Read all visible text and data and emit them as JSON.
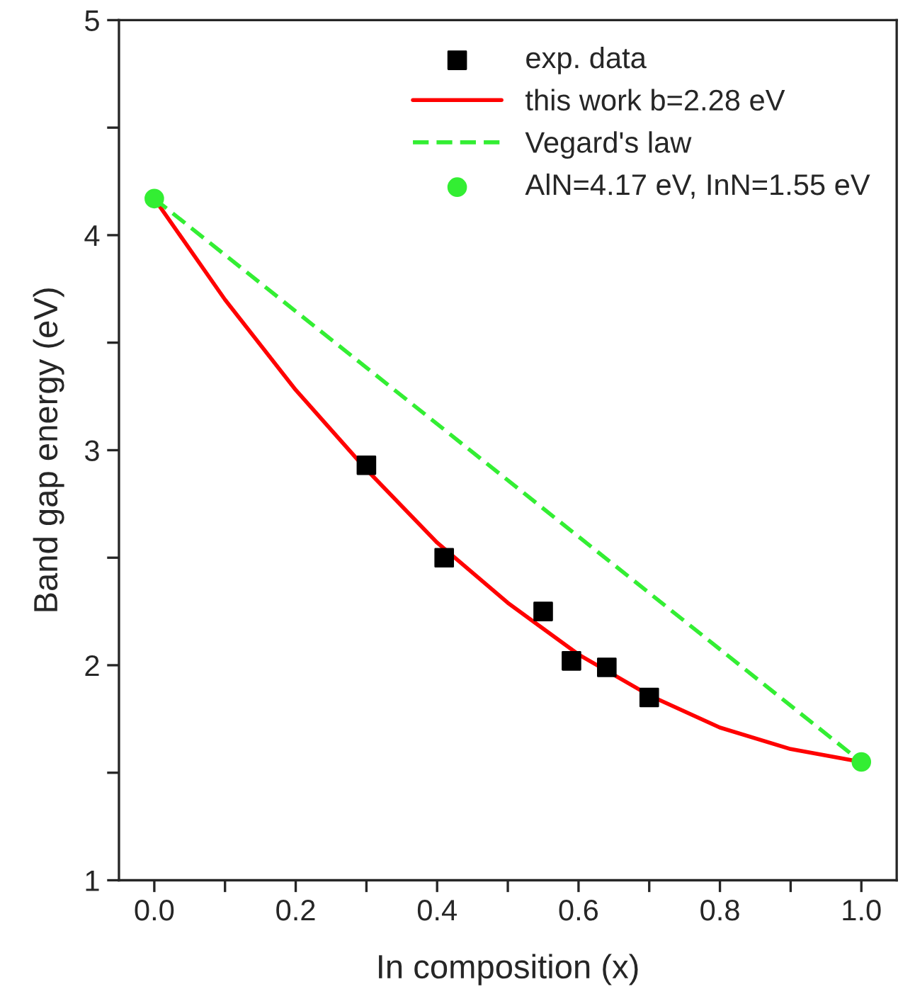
{
  "chart_data": {
    "type": "scatter",
    "xlabel": "In composition (x)",
    "ylabel": "Band gap energy (eV)",
    "xlim": [
      -0.05,
      1.05
    ],
    "ylim": [
      1,
      5
    ],
    "xticks": [
      {
        "value": 0.0,
        "label": "0.0"
      },
      {
        "value": 0.1,
        "label": null
      },
      {
        "value": 0.2,
        "label": "0.2"
      },
      {
        "value": 0.3,
        "label": null
      },
      {
        "value": 0.4,
        "label": "0.4"
      },
      {
        "value": 0.5,
        "label": null
      },
      {
        "value": 0.6,
        "label": "0.6"
      },
      {
        "value": 0.7,
        "label": null
      },
      {
        "value": 0.8,
        "label": "0.8"
      },
      {
        "value": 0.9,
        "label": null
      },
      {
        "value": 1.0,
        "label": "1.0"
      }
    ],
    "yticks": [
      1,
      {
        "value": 1.5,
        "label": null
      },
      2,
      {
        "value": 2.5,
        "label": null
      },
      3,
      {
        "value": 3.5,
        "label": null
      },
      4,
      {
        "value": 4.5,
        "label": null
      },
      5
    ],
    "legend": "top right",
    "grid": false,
    "series": [
      {
        "name": "exp. data",
        "marker": "square",
        "color": "#000000",
        "x": [
          0.3,
          0.41,
          0.55,
          0.59,
          0.64,
          0.7
        ],
        "values": [
          2.93,
          2.5,
          2.25,
          2.02,
          1.99,
          1.85
        ]
      },
      {
        "name": "this work b=2.28 eV",
        "type": "line",
        "line_style": "solid",
        "color": "#ff0000",
        "x": [
          0,
          0.1,
          0.2,
          0.3,
          0.4,
          0.5,
          0.6,
          0.7,
          0.8,
          0.9,
          1.0
        ],
        "values": [
          4.17,
          3.7,
          3.28,
          2.91,
          2.57,
          2.29,
          2.05,
          1.86,
          1.71,
          1.61,
          1.55
        ]
      },
      {
        "name": "Vegard's law",
        "type": "line",
        "line_style": "dashed",
        "color": "#33ee33",
        "x": [
          0,
          1.0
        ],
        "values": [
          4.17,
          1.55
        ]
      },
      {
        "name": "AlN=4.17 eV, InN=1.55 eV",
        "marker": "circle",
        "color": "#33ee33",
        "x": [
          0,
          1.0
        ],
        "values": [
          4.17,
          1.55
        ]
      }
    ]
  }
}
